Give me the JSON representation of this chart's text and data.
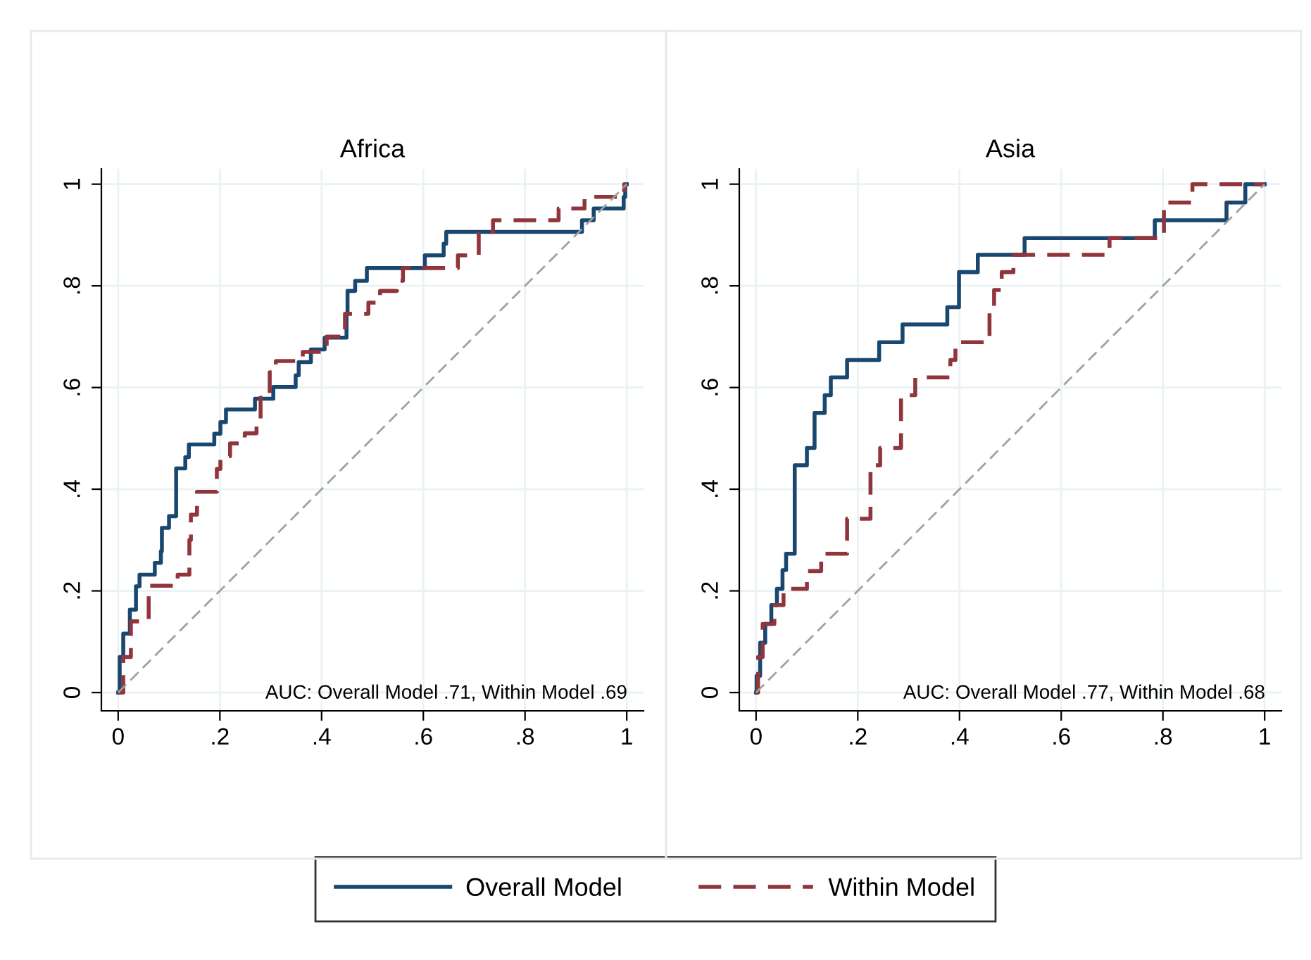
{
  "chart_data": [
    {
      "type": "step",
      "title": "Africa",
      "xlim": [
        -0.033,
        1.033
      ],
      "ylim": [
        -0.036,
        1.03
      ],
      "xticks": [
        0,
        {
          "value": 0.2,
          "label": ".2"
        },
        {
          "value": 0.4,
          "label": ".4"
        },
        {
          "value": 0.6,
          "label": ".6"
        },
        {
          "value": 0.8,
          "label": ".8"
        },
        1
      ],
      "yticks": [
        0,
        {
          "value": 0.2,
          "label": ".2"
        },
        {
          "value": 0.4,
          "label": ".4"
        },
        {
          "value": 0.6,
          "label": ".6"
        },
        {
          "value": 0.8,
          "label": ".8"
        },
        1
      ],
      "grid": true,
      "legend": "bottom",
      "annotations": [
        "AUC: Overall Model .71, Within Model .69"
      ],
      "series": [
        {
          "name": "Overall Model",
          "color": "#1a476f",
          "line_style": "solid",
          "x": [
            0,
            0.003,
            0.01,
            0.023,
            0.035,
            0.042,
            0.072,
            0.084,
            0.086,
            0.1,
            0.114,
            0.132,
            0.139,
            0.189,
            0.201,
            0.212,
            0.269,
            0.305,
            0.349,
            0.355,
            0.379,
            0.406,
            0.449,
            0.451,
            0.466,
            0.489,
            0.603,
            0.64,
            0.645,
            0.912,
            0.935,
            0.994,
            0.997,
            1
          ],
          "values": [
            0,
            0.07,
            0.116,
            0.163,
            0.209,
            0.232,
            0.255,
            0.278,
            0.324,
            0.347,
            0.441,
            0.463,
            0.488,
            0.509,
            0.532,
            0.557,
            0.578,
            0.601,
            0.624,
            0.65,
            0.675,
            0.698,
            0.744,
            0.79,
            0.81,
            0.835,
            0.86,
            0.883,
            0.906,
            0.929,
            0.952,
            0.975,
            1,
            1
          ]
        },
        {
          "name": "Within Model",
          "color": "#90353b",
          "line_style": "dashed",
          "x": [
            0,
            0.01,
            0.025,
            0.06,
            0.117,
            0.14,
            0.143,
            0.155,
            0.194,
            0.201,
            0.22,
            0.249,
            0.272,
            0.28,
            0.298,
            0.31,
            0.363,
            0.41,
            0.446,
            0.492,
            0.515,
            0.548,
            0.56,
            0.668,
            0.709,
            0.737,
            0.866,
            0.917,
            0.995,
            1
          ],
          "values": [
            0,
            0.07,
            0.14,
            0.21,
            0.232,
            0.3,
            0.35,
            0.395,
            0.44,
            0.465,
            0.49,
            0.51,
            0.535,
            0.58,
            0.63,
            0.652,
            0.67,
            0.7,
            0.745,
            0.767,
            0.79,
            0.81,
            0.835,
            0.86,
            0.906,
            0.929,
            0.952,
            0.975,
            1,
            1
          ]
        },
        {
          "type": "line",
          "color": "#a0a0a0",
          "line_style": "dashed",
          "x": [
            0,
            1
          ],
          "values": [
            0,
            1
          ]
        }
      ]
    },
    {
      "type": "step",
      "title": "Asia",
      "xlim": [
        -0.033,
        1.033
      ],
      "ylim": [
        -0.036,
        1.03
      ],
      "xticks": [
        0,
        {
          "value": 0.2,
          "label": ".2"
        },
        {
          "value": 0.4,
          "label": ".4"
        },
        {
          "value": 0.6,
          "label": ".6"
        },
        {
          "value": 0.8,
          "label": ".8"
        },
        1
      ],
      "yticks": [
        0,
        {
          "value": 0.2,
          "label": ".2"
        },
        {
          "value": 0.4,
          "label": ".4"
        },
        {
          "value": 0.6,
          "label": ".6"
        },
        {
          "value": 0.8,
          "label": ".8"
        },
        1
      ],
      "grid": true,
      "legend": "bottom",
      "annotations": [
        "AUC: Overall Model .77, Within Model .68"
      ],
      "series": [
        {
          "name": "Overall Model",
          "color": "#1a476f",
          "line_style": "solid",
          "x": [
            0,
            0.001,
            0.008,
            0.018,
            0.03,
            0.041,
            0.052,
            0.059,
            0.076,
            0.1,
            0.115,
            0.135,
            0.147,
            0.179,
            0.242,
            0.288,
            0.376,
            0.399,
            0.436,
            0.528,
            0.784,
            0.925,
            0.962,
            1
          ],
          "values": [
            0,
            0.033,
            0.098,
            0.135,
            0.172,
            0.204,
            0.241,
            0.273,
            0.447,
            0.481,
            0.55,
            0.585,
            0.62,
            0.654,
            0.689,
            0.724,
            0.758,
            0.827,
            0.861,
            0.894,
            0.929,
            0.964,
            1,
            1
          ]
        },
        {
          "name": "Within Model",
          "color": "#90353b",
          "line_style": "dashed",
          "x": [
            0,
            0.004,
            0.013,
            0.036,
            0.054,
            0.1,
            0.128,
            0.179,
            0.225,
            0.244,
            0.285,
            0.313,
            0.382,
            0.392,
            0.459,
            0.468,
            0.483,
            0.506,
            0.695,
            0.802,
            0.858,
            1
          ],
          "values": [
            0,
            0.07,
            0.135,
            0.172,
            0.204,
            0.239,
            0.273,
            0.342,
            0.447,
            0.481,
            0.585,
            0.62,
            0.654,
            0.689,
            0.758,
            0.792,
            0.827,
            0.861,
            0.894,
            0.964,
            1,
            1
          ]
        },
        {
          "type": "line",
          "color": "#a0a0a0",
          "line_style": "dashed",
          "x": [
            0,
            1
          ],
          "values": [
            0,
            1
          ]
        }
      ]
    }
  ]
}
